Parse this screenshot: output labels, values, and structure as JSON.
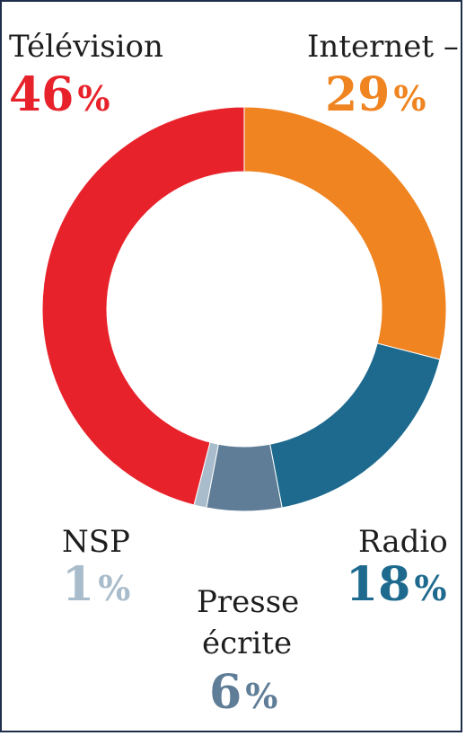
{
  "chart_data": {
    "type": "pie",
    "variant": "donut",
    "categories": [
      "Internet",
      "Radio",
      "Presse écrite",
      "NSP",
      "Télévision"
    ],
    "values": [
      29,
      18,
      6,
      1,
      46
    ],
    "unit": "%",
    "colors": [
      "#ef8421",
      "#1e6a8e",
      "#5f7d97",
      "#a9bccb",
      "#e8222b"
    ],
    "labels": {
      "internet": {
        "name": "Internet –",
        "value": "29",
        "unit": "%",
        "color": "#ef8421"
      },
      "television": {
        "name": "Télévision",
        "value": "46",
        "unit": "%",
        "color": "#e8222b"
      },
      "radio": {
        "name": "Radio",
        "value": "18",
        "unit": "%",
        "color": "#1e6a8e"
      },
      "nsp": {
        "name": "NSP",
        "value": "1",
        "unit": "%",
        "color": "#a9bccb"
      },
      "presse": {
        "name_line1": "Presse",
        "name_line2": "écrite",
        "value": "6",
        "unit": "%",
        "color": "#5f7d97"
      }
    }
  }
}
